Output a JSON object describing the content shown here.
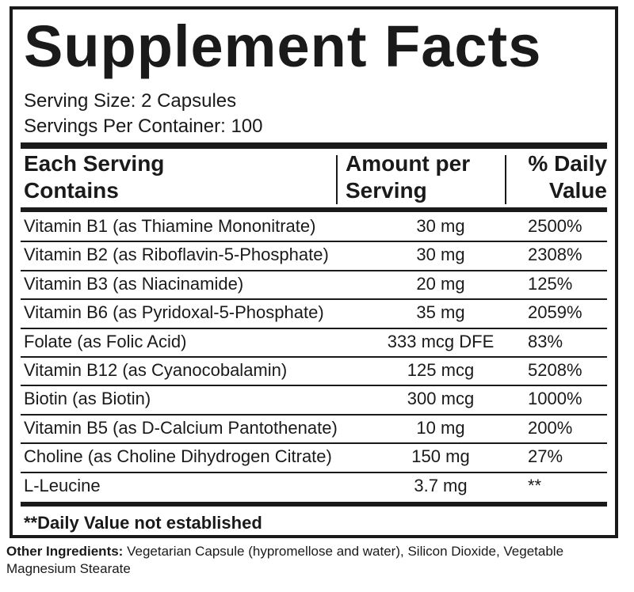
{
  "header": {
    "title": "Supplement Facts",
    "serving_size": "Serving Size: 2 Capsules",
    "servings_per_container": "Servings Per Container: 100"
  },
  "table": {
    "columns": [
      "Each Serving Contains",
      "Amount per Serving",
      "% Daily Value"
    ],
    "rows": [
      [
        "Vitamin B1 (as Thiamine Mononitrate)",
        "30 mg",
        "2500%"
      ],
      [
        "Vitamin B2 (as Riboflavin-5-Phosphate)",
        "30 mg",
        "2308%"
      ],
      [
        "Vitamin B3 (as Niacinamide)",
        "20 mg",
        "125%"
      ],
      [
        "Vitamin B6 (as Pyridoxal-5-Phosphate)",
        "35 mg",
        "2059%"
      ],
      [
        "Folate (as Folic Acid)",
        "333 mcg DFE",
        "83%"
      ],
      [
        "Vitamin B12 (as Cyanocobalamin)",
        "125 mcg",
        "5208%"
      ],
      [
        "Biotin (as Biotin)",
        "300 mcg",
        "1000%"
      ],
      [
        "Vitamin B5 (as D-Calcium Pantothenate)",
        "10 mg",
        "200%"
      ],
      [
        "Choline (as Choline Dihydrogen Citrate)",
        "150 mg",
        "27%"
      ],
      [
        "L-Leucine",
        "3.7 mg",
        "**"
      ]
    ]
  },
  "footnote": "**Daily Value not established",
  "other_ingredients": {
    "label": "Other Ingredients:",
    "text": "Vegetarian Capsule (hypromellose and water), Silicon Dioxide, Vegetable Magnesium Stearate"
  }
}
